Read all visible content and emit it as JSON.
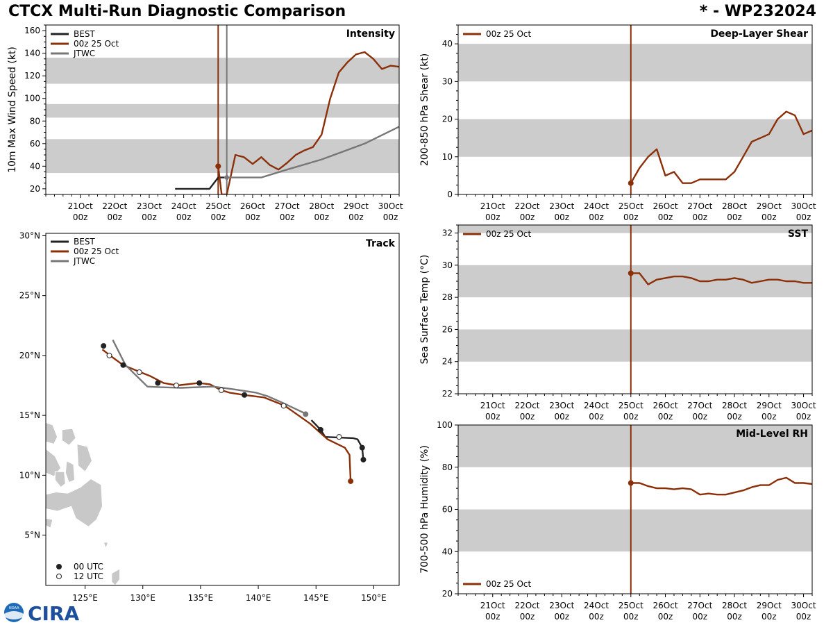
{
  "header": {
    "title": "CTCX Multi-Run Diagnostic Comparison",
    "storm_id": "* - WP232024"
  },
  "logo": {
    "text": "CIRA",
    "badge": "NOAA"
  },
  "colors": {
    "best": "#222222",
    "run": "#8b2f08",
    "jtwc": "#777777",
    "band": "#cccccc",
    "land": "#c8c8c8"
  },
  "time_axis": {
    "min": 0,
    "max": 10.25,
    "ticks": [
      {
        "pos": 1,
        "day": "21Oct",
        "hour": "00z"
      },
      {
        "pos": 2,
        "day": "22Oct",
        "hour": "00z"
      },
      {
        "pos": 3,
        "day": "23Oct",
        "hour": "00z"
      },
      {
        "pos": 4,
        "day": "24Oct",
        "hour": "00z"
      },
      {
        "pos": 5,
        "day": "25Oct",
        "hour": "00z"
      },
      {
        "pos": 6,
        "day": "26Oct",
        "hour": "00z"
      },
      {
        "pos": 7,
        "day": "27Oct",
        "hour": "00z"
      },
      {
        "pos": 8,
        "day": "28Oct",
        "hour": "00z"
      },
      {
        "pos": 9,
        "day": "29Oct",
        "hour": "00z"
      },
      {
        "pos": 10,
        "day": "30Oct",
        "hour": "00z"
      }
    ]
  },
  "chart_data": [
    {
      "id": "intensity",
      "type": "line",
      "title": "Intensity",
      "ylabel": "10m Max Wind Speed (kt)",
      "ylim": [
        15,
        165
      ],
      "yticks": [
        20,
        40,
        60,
        80,
        100,
        120,
        140,
        160
      ],
      "bands": [
        [
          34,
          64
        ],
        [
          83,
          95
        ],
        [
          113,
          136
        ]
      ],
      "vlines": [
        {
          "x": 5.0,
          "series": "run"
        },
        {
          "x": 5.25,
          "series": "jtwc"
        }
      ],
      "legend": [
        "BEST",
        "00z 25 Oct",
        "JTWC"
      ],
      "series": [
        {
          "name": "BEST",
          "key": "best",
          "x": [
            3.75,
            4.75,
            5.0,
            5.25
          ],
          "y": [
            20,
            20,
            30,
            30
          ]
        },
        {
          "name": "00z 25 Oct",
          "key": "run",
          "x": [
            5.0,
            5.1,
            5.25,
            5.5,
            5.75,
            6.0,
            6.25,
            6.5,
            6.75,
            7.0,
            7.25,
            7.5,
            7.75,
            8.0,
            8.25,
            8.5,
            8.75,
            9.0,
            9.25,
            9.5,
            9.75,
            10.0,
            10.25
          ],
          "y": [
            40,
            15,
            15,
            50,
            48,
            42,
            48,
            41,
            37,
            43,
            50,
            54,
            57,
            68,
            100,
            123,
            132,
            139,
            141,
            135,
            126,
            129,
            128
          ]
        },
        {
          "name": "JTWC",
          "key": "jtwc",
          "x": [
            5.25,
            6.25,
            7.0,
            8.0,
            9.25,
            10.25
          ],
          "y": [
            30,
            30,
            37,
            46,
            60,
            75
          ]
        }
      ],
      "markers": [
        {
          "series": "run",
          "x": 5.0,
          "y": 40,
          "shape": "circle"
        },
        {
          "series": "jtwc",
          "x": 5.25,
          "y": 30,
          "shape": "diamond"
        }
      ]
    },
    {
      "id": "shear",
      "type": "line",
      "title": "Deep-Layer Shear",
      "ylabel": "200-850 hPa Shear (kt)",
      "ylim": [
        0,
        45
      ],
      "yticks": [
        0,
        10,
        20,
        30,
        40
      ],
      "bands": [
        [
          10,
          20
        ],
        [
          30,
          40
        ]
      ],
      "vlines": [
        {
          "x": 5.0,
          "series": "run"
        }
      ],
      "legend": [
        "00z 25 Oct"
      ],
      "series": [
        {
          "name": "00z 25 Oct",
          "key": "run",
          "x": [
            5.0,
            5.25,
            5.5,
            5.75,
            6.0,
            6.25,
            6.5,
            6.75,
            7.0,
            7.25,
            7.5,
            7.75,
            8.0,
            8.25,
            8.5,
            8.75,
            9.0,
            9.25,
            9.5,
            9.75,
            10.0,
            10.25
          ],
          "y": [
            3,
            7,
            10,
            12,
            5,
            6,
            3,
            3,
            4,
            4,
            4,
            4,
            6,
            10,
            14,
            15,
            16,
            20,
            22,
            21,
            16,
            17
          ]
        }
      ],
      "markers": [
        {
          "series": "run",
          "x": 5.0,
          "y": 3,
          "shape": "circle"
        }
      ]
    },
    {
      "id": "sst",
      "type": "line",
      "title": "SST",
      "ylabel": "Sea Surface Temp (°C)",
      "ylim": [
        22,
        32.5
      ],
      "yticks": [
        22,
        24,
        26,
        28,
        30,
        32
      ],
      "bands": [
        [
          24,
          26
        ],
        [
          28,
          30
        ],
        [
          32,
          32.5
        ]
      ],
      "vlines": [
        {
          "x": 5.0,
          "series": "run"
        }
      ],
      "legend": [
        "00z 25 Oct"
      ],
      "series": [
        {
          "name": "00z 25 Oct",
          "key": "run",
          "x": [
            5.0,
            5.25,
            5.5,
            5.75,
            6.0,
            6.25,
            6.5,
            6.75,
            7.0,
            7.25,
            7.5,
            7.75,
            8.0,
            8.25,
            8.5,
            8.75,
            9.0,
            9.25,
            9.5,
            9.75,
            10.0,
            10.25
          ],
          "y": [
            29.5,
            29.5,
            28.8,
            29.1,
            29.2,
            29.3,
            29.3,
            29.2,
            29.0,
            29.0,
            29.1,
            29.1,
            29.2,
            29.1,
            28.9,
            29.0,
            29.1,
            29.1,
            29.0,
            29.0,
            28.9,
            28.9
          ]
        }
      ],
      "markers": [
        {
          "series": "run",
          "x": 5.0,
          "y": 29.5,
          "shape": "circle"
        }
      ]
    },
    {
      "id": "rh",
      "type": "line",
      "title": "Mid-Level RH",
      "ylabel": "700-500 hPa Humidity (%)",
      "ylim": [
        20,
        100
      ],
      "yticks": [
        20,
        40,
        60,
        80,
        100
      ],
      "bands": [
        [
          40,
          60
        ],
        [
          80,
          100
        ]
      ],
      "vlines": [
        {
          "x": 5.0,
          "series": "run"
        }
      ],
      "legend": [
        "00z 25 Oct"
      ],
      "series": [
        {
          "name": "00z 25 Oct",
          "key": "run",
          "x": [
            5.0,
            5.25,
            5.5,
            5.75,
            6.0,
            6.25,
            6.5,
            6.75,
            7.0,
            7.25,
            7.5,
            7.75,
            8.0,
            8.25,
            8.5,
            8.75,
            9.0,
            9.25,
            9.5,
            9.75,
            10.0,
            10.25
          ],
          "y": [
            72.5,
            72.5,
            71,
            70,
            70,
            69.5,
            70,
            69.5,
            67,
            67.5,
            67,
            67,
            68,
            69,
            70.5,
            71.5,
            71.5,
            74,
            75,
            72.5,
            72.5,
            72
          ]
        }
      ],
      "markers": [
        {
          "series": "run",
          "x": 5.0,
          "y": 72.5,
          "shape": "circle"
        }
      ]
    },
    {
      "id": "track",
      "type": "scatter",
      "title": "Track",
      "xlim": [
        121.6,
        152.2
      ],
      "ylim": [
        0.8,
        30.2
      ],
      "xticks": [
        {
          "v": 125,
          "label": "125°E"
        },
        {
          "v": 130,
          "label": "130°E"
        },
        {
          "v": 135,
          "label": "135°E"
        },
        {
          "v": 140,
          "label": "140°E"
        },
        {
          "v": 145,
          "label": "145°E"
        },
        {
          "v": 150,
          "label": "150°E"
        }
      ],
      "yticks": [
        {
          "v": 5,
          "label": "5°N"
        },
        {
          "v": 10,
          "label": "10°N"
        },
        {
          "v": 15,
          "label": "15°N"
        },
        {
          "v": 20,
          "label": "20°N"
        },
        {
          "v": 25,
          "label": "25°N"
        },
        {
          "v": 30,
          "label": "30°N"
        }
      ],
      "legend": [
        "BEST",
        "00z 25 Oct",
        "JTWC"
      ],
      "marker_legend": [
        "00 UTC",
        "12 UTC"
      ],
      "series": [
        {
          "name": "BEST",
          "key": "best",
          "lon": [
            149.1,
            149.0,
            148.6,
            148.2,
            145.8,
            145.4,
            144.6
          ],
          "lat": [
            11.3,
            12.3,
            13.0,
            13.1,
            13.2,
            13.8,
            14.6
          ]
        },
        {
          "name": "00z 25 Oct",
          "key": "run",
          "lon": [
            148.0,
            147.9,
            147.5,
            146.0,
            144.5,
            142.3,
            140.5,
            138.8,
            137.5,
            136.8,
            135.8,
            134.8,
            133.0,
            131.8,
            130.6,
            129.8,
            128.3,
            127.3,
            126.5
          ],
          "lat": [
            9.5,
            11.7,
            12.3,
            13.0,
            14.3,
            15.8,
            16.5,
            16.7,
            16.9,
            17.1,
            17.6,
            17.7,
            17.5,
            17.7,
            18.3,
            18.6,
            19.2,
            19.9,
            20.5
          ]
        },
        {
          "name": "JTWC",
          "key": "jtwc",
          "lon": [
            144.2,
            142.0,
            140.8,
            139.8,
            137.7,
            136.1,
            133.3,
            131.5,
            130.4,
            128.5,
            127.4
          ],
          "lat": [
            15.1,
            16.1,
            16.6,
            16.9,
            17.2,
            17.4,
            17.3,
            17.35,
            17.4,
            19.2,
            21.3
          ]
        }
      ],
      "points": [
        {
          "lon": 149.1,
          "lat": 11.3,
          "fill": "best"
        },
        {
          "lon": 149.0,
          "lat": 12.3,
          "fill": "best"
        },
        {
          "lon": 145.4,
          "lat": 13.8,
          "fill": "best"
        },
        {
          "lon": 138.8,
          "lat": 16.7,
          "fill": "best"
        },
        {
          "lon": 134.9,
          "lat": 17.7,
          "fill": "best"
        },
        {
          "lon": 131.3,
          "lat": 17.7,
          "fill": "best"
        },
        {
          "lon": 128.3,
          "lat": 19.2,
          "fill": "best"
        },
        {
          "lon": 126.6,
          "lat": 20.8,
          "fill": "best"
        },
        {
          "lon": 147.0,
          "lat": 13.2,
          "fill": "open"
        },
        {
          "lon": 142.2,
          "lat": 15.8,
          "fill": "open"
        },
        {
          "lon": 136.8,
          "lat": 17.1,
          "fill": "open"
        },
        {
          "lon": 132.9,
          "lat": 17.5,
          "fill": "open"
        },
        {
          "lon": 129.7,
          "lat": 18.6,
          "fill": "open"
        },
        {
          "lon": 127.1,
          "lat": 20.0,
          "fill": "open"
        },
        {
          "lon": 148.0,
          "lat": 9.5,
          "fill": "run"
        },
        {
          "lon": 144.1,
          "lat": 15.1,
          "fill": "jtwc"
        }
      ]
    }
  ]
}
